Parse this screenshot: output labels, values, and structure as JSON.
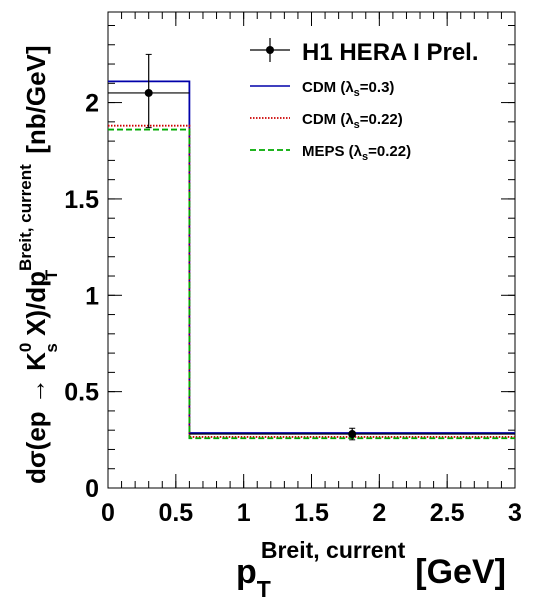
{
  "chart_data": {
    "type": "line",
    "x_ticks": [
      "0",
      "0.5",
      "1",
      "1.5",
      "2",
      "2.5",
      "3"
    ],
    "y_ticks": [
      "0",
      "0.5",
      "1",
      "1.5",
      "2"
    ],
    "xlim": [
      0,
      3
    ],
    "ylim": [
      0,
      2.47
    ],
    "grid": false,
    "legend_position": "top-right",
    "xlabel": {
      "main": "p",
      "sub": "T",
      "sup": "Breit, current",
      "unit": "[GeV]"
    },
    "ylabel": {
      "part1": "dσ(ep → K",
      "sup1": "0",
      "sub1": "s",
      "part2": " X)/dp",
      "sup2": "Breit, current",
      "sub2": "T",
      "unit": "[nb/GeV]"
    },
    "bin_edges": [
      0,
      0.6,
      3
    ],
    "data_series": {
      "name": "H1 HERA I Prel.",
      "color": "#000000",
      "points": [
        {
          "x": 0.3,
          "y": 2.05,
          "yerr_low": 0.18,
          "yerr_high": 0.2,
          "xerr": 0.3
        },
        {
          "x": 1.8,
          "y": 0.28,
          "yerr_low": 0.03,
          "yerr_high": 0.03,
          "xerr": 1.2
        }
      ]
    },
    "series": [
      {
        "name": "CDM (λs=0.3)",
        "label_main": "CDM (λ",
        "label_sub": "s",
        "label_tail": "=0.3)",
        "color": "#0000aa",
        "style": "solid",
        "values": [
          2.11,
          0.285
        ]
      },
      {
        "name": "CDM (λs=0.22)",
        "label_main": "CDM (λ",
        "label_sub": "s",
        "label_tail": "=0.22)",
        "color": "#cc0000",
        "style": "dotted",
        "values": [
          1.88,
          0.265
        ]
      },
      {
        "name": "MEPS (λs=0.22)",
        "label_main": "MEPS (λ",
        "label_sub": "s",
        "label_tail": "=0.22)",
        "color": "#00aa00",
        "style": "dashed",
        "values": [
          1.86,
          0.258
        ]
      }
    ]
  }
}
